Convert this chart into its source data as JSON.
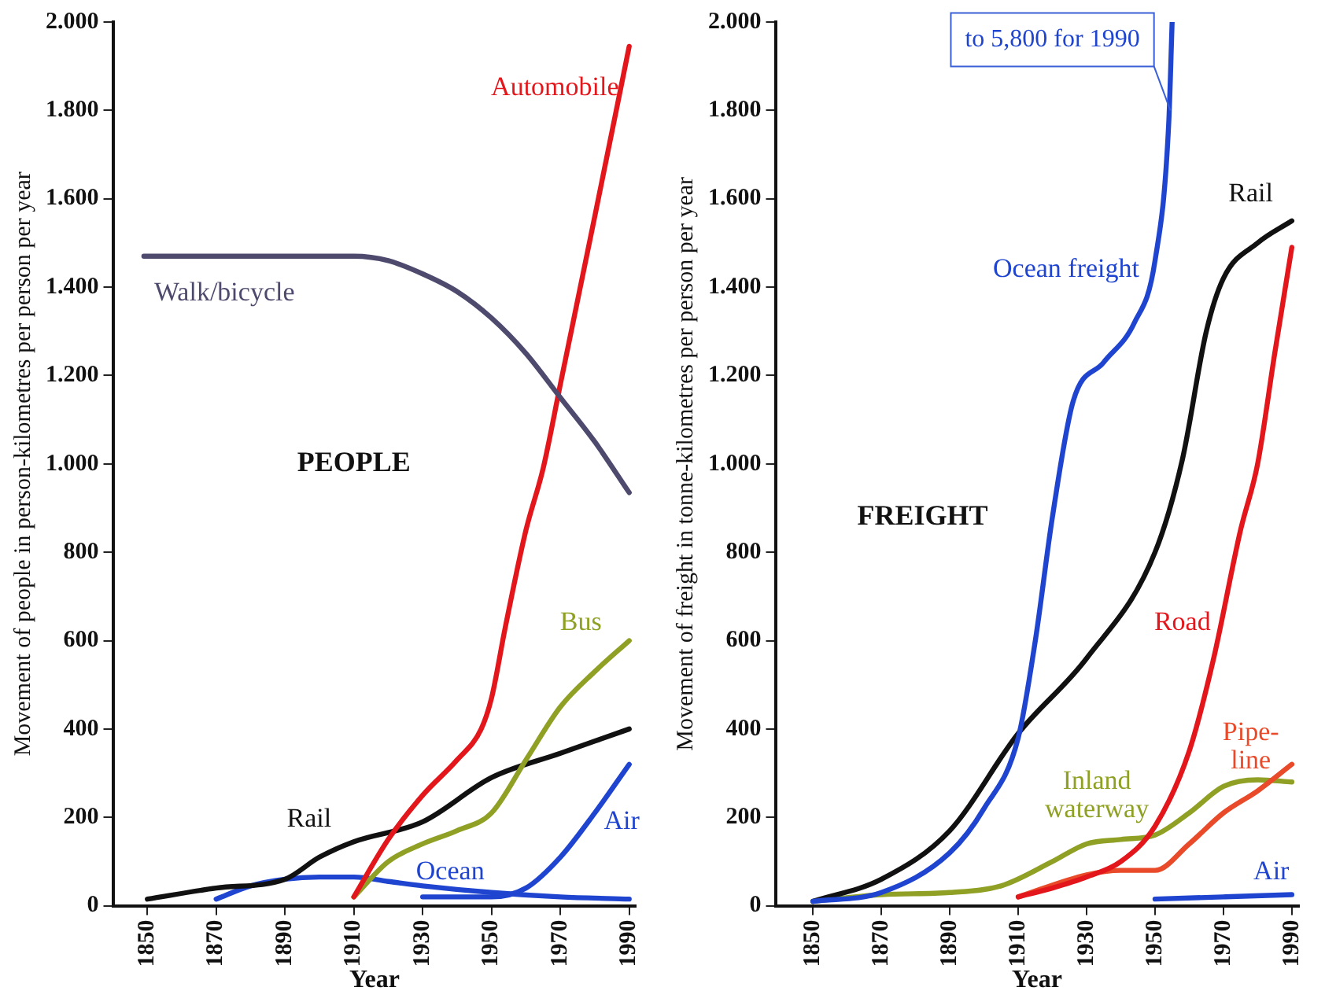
{
  "chart_data": [
    {
      "type": "line",
      "xlabel": "Year",
      "ylabel": "Movement of people in person-kilometres per person per year",
      "xlim": [
        1840,
        1992
      ],
      "xticks": [
        1850,
        1870,
        1890,
        1910,
        1930,
        1950,
        1970,
        1990
      ],
      "ylim": [
        0,
        2000
      ],
      "yticks": [
        0,
        200,
        400,
        600,
        800,
        {
          "value": 1000,
          "label": "1.000"
        },
        {
          "value": 1200,
          "label": "1.200"
        },
        {
          "value": 1400,
          "label": "1.400"
        },
        {
          "value": 1600,
          "label": "1.600"
        },
        {
          "value": 1800,
          "label": "1.800"
        },
        {
          "value": 2000,
          "label": "2.000"
        }
      ],
      "grid": false,
      "legend": false,
      "marker": "none",
      "annotations": [
        "PEOPLE"
      ],
      "series": [
        {
          "name": "Walk/bicycle",
          "color": "#4e4a6e",
          "x": [
            1849,
            1870,
            1890,
            1910,
            1920,
            1930,
            1940,
            1950,
            1960,
            1970,
            1980,
            1990
          ],
          "values": [
            1470,
            1470,
            1470,
            1470,
            1460,
            1430,
            1390,
            1330,
            1250,
            1150,
            1050,
            935
          ]
        },
        {
          "name": "Automobile",
          "color": "#e3161c",
          "x": [
            1910,
            1920,
            1930,
            1940,
            1947,
            1950,
            1954,
            1960,
            1965,
            1970,
            1980,
            1990
          ],
          "values": [
            20,
            150,
            250,
            330,
            400,
            470,
            630,
            850,
            990,
            1180,
            1560,
            1945
          ]
        },
        {
          "name": "Bus",
          "color": "#8fa024",
          "x": [
            1910,
            1920,
            1930,
            1940,
            1950,
            1960,
            1970,
            1980,
            1990
          ],
          "values": [
            20,
            100,
            140,
            170,
            210,
            330,
            450,
            530,
            600
          ]
        },
        {
          "name": "Rail",
          "color": "#111111",
          "x": [
            1850,
            1870,
            1890,
            1900,
            1910,
            1930,
            1950,
            1970,
            1990
          ],
          "values": [
            15,
            40,
            60,
            110,
            145,
            190,
            290,
            345,
            400
          ]
        },
        {
          "name": "Ocean",
          "color": "#1f45d0",
          "x": [
            1870,
            1880,
            1890,
            1900,
            1910,
            1920,
            1930,
            1950,
            1970,
            1990
          ],
          "values": [
            15,
            45,
            60,
            65,
            65,
            55,
            45,
            30,
            20,
            15
          ]
        },
        {
          "name": "Air",
          "color": "#1f45d0",
          "x": [
            1930,
            1950,
            1960,
            1970,
            1980,
            1990
          ],
          "values": [
            20,
            20,
            40,
            110,
            210,
            320
          ]
        }
      ]
    },
    {
      "type": "line",
      "xlabel": "Year",
      "ylabel": "Movement of freight in tonne-kilometres per person per year",
      "xlim": [
        1839,
        1992
      ],
      "xticks": [
        1850,
        1870,
        1890,
        1910,
        1930,
        1950,
        1970,
        1990
      ],
      "ylim": [
        0,
        2000
      ],
      "yticks": [
        0,
        200,
        400,
        600,
        800,
        {
          "value": 1000,
          "label": "1.000"
        },
        {
          "value": 1200,
          "label": "1.200"
        },
        {
          "value": 1400,
          "label": "1.400"
        },
        {
          "value": 1600,
          "label": "1.600"
        },
        {
          "value": 1800,
          "label": "1.800"
        },
        {
          "value": 2000,
          "label": "2.000"
        }
      ],
      "grid": false,
      "legend": false,
      "marker": "none",
      "annotations": [
        "FREIGHT",
        {
          "text": "to 5,800 for 1990",
          "x": 1954.5,
          "y": 1800
        }
      ],
      "series": [
        {
          "name": "Ocean freight",
          "color": "#1f45d0",
          "x": [
            1850,
            1870,
            1890,
            1900,
            1910,
            1915,
            1920,
            1926,
            1935,
            1944,
            1950,
            1954,
            1955
          ],
          "values": [
            10,
            30,
            120,
            220,
            380,
            600,
            880,
            1140,
            1230,
            1320,
            1460,
            1770,
            2000
          ]
        },
        {
          "name": "Rail",
          "color": "#111111",
          "x": [
            1850,
            1870,
            1890,
            1910,
            1930,
            1950,
            1958,
            1965,
            1970,
            1980,
            1990
          ],
          "values": [
            10,
            60,
            170,
            390,
            560,
            800,
            1010,
            1300,
            1420,
            1500,
            1550
          ]
        },
        {
          "name": "Road",
          "color": "#e3161c",
          "x": [
            1910,
            1920,
            1930,
            1940,
            1950,
            1960,
            1967,
            1975,
            1980,
            1985,
            1990
          ],
          "values": [
            20,
            40,
            65,
            100,
            180,
            350,
            555,
            850,
            1000,
            1250,
            1490
          ]
        },
        {
          "name": "Pipe-line",
          "color": "#e84a2a",
          "x": [
            1910,
            1930,
            1940,
            1950,
            1960,
            1970,
            1980,
            1990
          ],
          "values": [
            20,
            70,
            80,
            80,
            140,
            210,
            260,
            320
          ]
        },
        {
          "name": "Inland waterway",
          "color": "#8fa024",
          "x": [
            1850,
            1870,
            1890,
            1905,
            1920,
            1930,
            1940,
            1950,
            1960,
            1970,
            1980,
            1990
          ],
          "values": [
            10,
            25,
            30,
            45,
            100,
            140,
            150,
            160,
            210,
            270,
            285,
            280
          ]
        },
        {
          "name": "Air",
          "color": "#1f45d0",
          "x": [
            1950,
            1970,
            1990
          ],
          "values": [
            15,
            20,
            25
          ]
        }
      ]
    }
  ]
}
